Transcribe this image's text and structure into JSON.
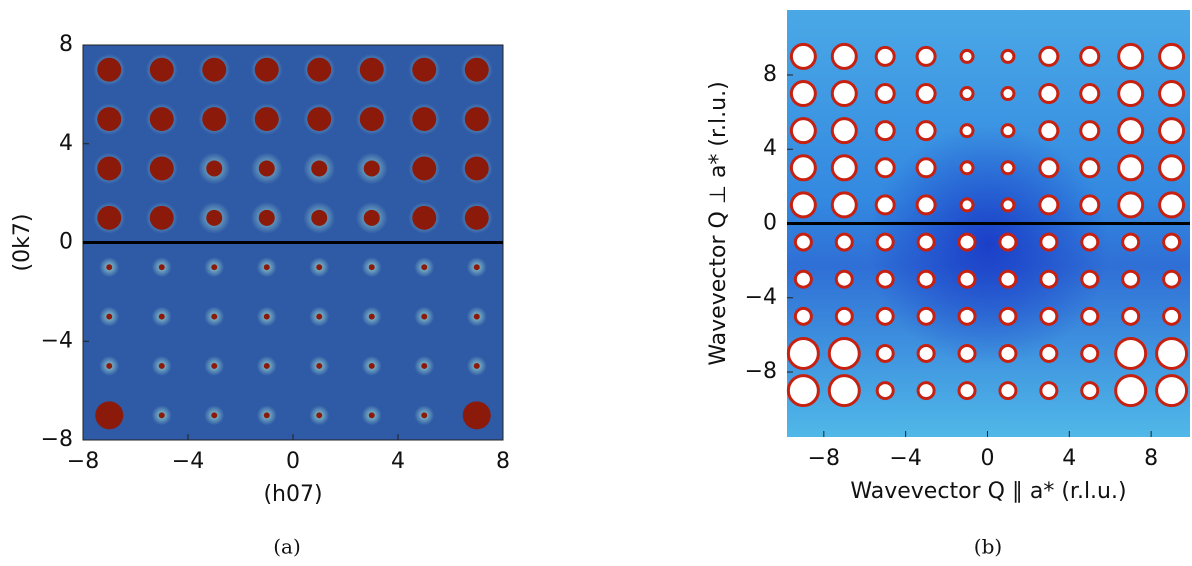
{
  "chart_data": [
    {
      "type": "heatmap",
      "xlabel": "(h07)",
      "ylabel": "(0k7)",
      "caption": "(a)",
      "xlim": [
        -8,
        8
      ],
      "ylim": [
        -8,
        8
      ],
      "xticks": [
        {
          "value": -8,
          "label": "−8"
        },
        {
          "value": -4,
          "label": "−4"
        },
        0,
        4,
        8
      ],
      "yticks": [
        {
          "value": -8,
          "label": "−8"
        },
        {
          "value": -4,
          "label": "−4"
        },
        0,
        4,
        8
      ]
    },
    {
      "type": "heatmap",
      "xlabel": "Wavevector Q ∥ a* (r.l.u.)",
      "ylabel": "Wavevector Q ⊥ a* (r.l.u.)",
      "caption": "(b)",
      "xlim": [
        -9.8,
        9.9
      ],
      "ylim": [
        -11.5,
        11.5
      ],
      "xticks": [
        {
          "value": -8,
          "label": "−8"
        },
        {
          "value": -4,
          "label": "−4"
        },
        0,
        4,
        8
      ],
      "yticks": [
        {
          "value": -8,
          "label": "−8"
        },
        {
          "value": -4,
          "label": "−4"
        },
        0,
        4,
        8
      ]
    }
  ]
}
